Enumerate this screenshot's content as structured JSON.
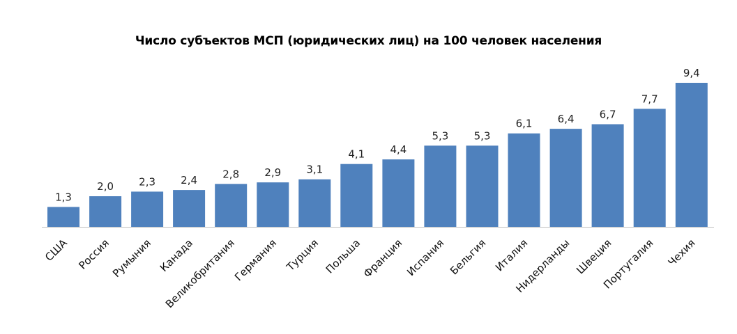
{
  "chart_data": {
    "type": "bar",
    "title": "Число субъектов МСП (юридических лиц) на 100 человек населения",
    "xlabel": "",
    "ylabel": "",
    "categories": [
      "США",
      "Россия",
      "Румыния",
      "Канада",
      "Великобритания",
      "Германия",
      "Турция",
      "Польша",
      "Франция",
      "Испания",
      "Бельгия",
      "Италия",
      "Нидерланды",
      "Швеция",
      "Португалия",
      "Чехия"
    ],
    "values": [
      1.3,
      2.0,
      2.3,
      2.4,
      2.8,
      2.9,
      3.1,
      4.1,
      4.4,
      5.3,
      5.3,
      6.1,
      6.4,
      6.7,
      7.7,
      9.4
    ],
    "data_labels": [
      "1,3",
      "2,0",
      "2,3",
      "2,4",
      "2,8",
      "2,9",
      "3,1",
      "4,1",
      "4,4",
      "5,3",
      "5,3",
      "6,1",
      "6,4",
      "6,7",
      "7,7",
      "9,4"
    ],
    "ylim": [
      0,
      9.4
    ],
    "bar_color": "#4f81bd",
    "axis_color": "#bfbfbf",
    "grid": false,
    "legend": "none"
  }
}
